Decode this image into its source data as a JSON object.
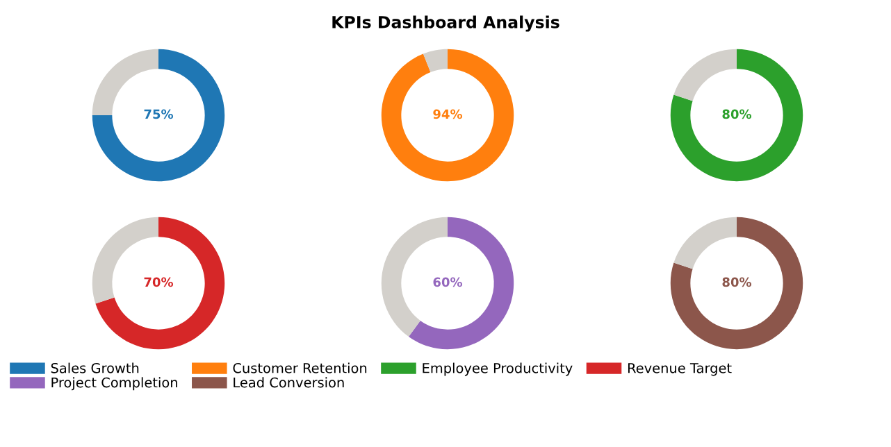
{
  "chart_data": [
    {
      "type": "other",
      "title": "KPIs Dashboard Analysis"
    },
    {
      "type": "donut",
      "categories": [
        "Sales Growth",
        null
      ],
      "values": [
        75,
        25
      ],
      "colors": [
        "#1f77b4",
        "#d3d0cb"
      ],
      "value_labels": [
        "75%",
        null
      ],
      "legend": "bottom"
    },
    {
      "type": "donut",
      "categories": [
        "Customer Retention",
        null
      ],
      "values": [
        94,
        6
      ],
      "colors": [
        "#ff7f0e",
        "#d3d0cb"
      ],
      "value_labels": [
        "94%",
        null
      ],
      "legend": "bottom"
    },
    {
      "type": "donut",
      "categories": [
        "Employee Productivity",
        null
      ],
      "values": [
        80,
        20
      ],
      "colors": [
        "#2ca02c",
        "#d3d0cb"
      ],
      "value_labels": [
        "80%",
        null
      ],
      "legend": "bottom"
    },
    {
      "type": "donut",
      "categories": [
        "Revenue Target",
        null
      ],
      "values": [
        70,
        30
      ],
      "colors": [
        "#d62728",
        "#d3d0cb"
      ],
      "value_labels": [
        "70%",
        null
      ],
      "legend": "bottom"
    },
    {
      "type": "donut",
      "categories": [
        "Project Completion",
        null
      ],
      "values": [
        60,
        40
      ],
      "colors": [
        "#9467bd",
        "#d3d0cb"
      ],
      "value_labels": [
        "60%",
        null
      ],
      "legend": "bottom"
    },
    {
      "type": "donut",
      "categories": [
        "Lead Conversion",
        null
      ],
      "values": [
        80,
        20
      ],
      "colors": [
        "#8c564b",
        "#d3d0cb"
      ],
      "value_labels": [
        "80%",
        null
      ],
      "legend": "bottom"
    }
  ]
}
